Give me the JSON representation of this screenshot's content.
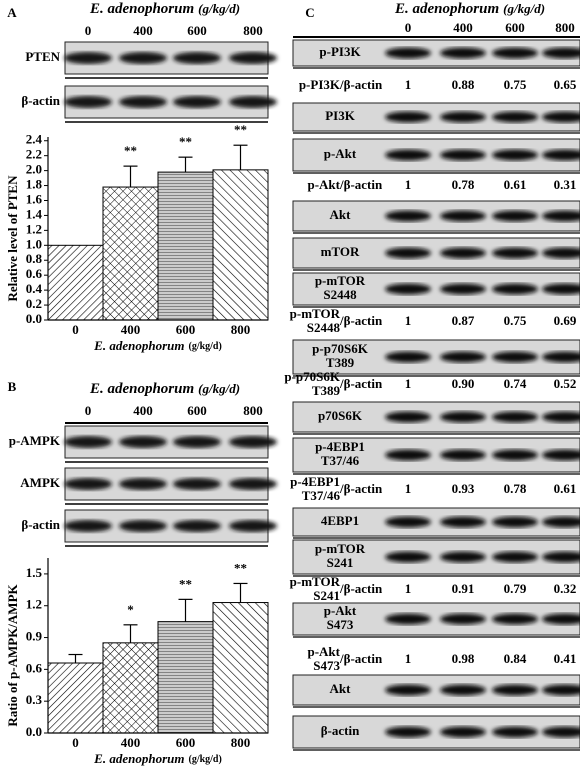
{
  "panel_labels": [
    "A",
    "B",
    "C"
  ],
  "panel_a": {
    "header": {
      "species": "E. adenophorum",
      "unit": "(g/kg/d)"
    },
    "doses": [
      "0",
      "400",
      "600",
      "800"
    ],
    "blots": [
      "PTEN",
      "β-actin"
    ]
  },
  "panel_b": {
    "header": {
      "species": "E. adenophorum",
      "unit": "(g/kg/d)"
    },
    "doses": [
      "0",
      "400",
      "600",
      "800"
    ],
    "blots": [
      "p-AMPK",
      "AMPK",
      "β-actin"
    ]
  },
  "panel_c": {
    "header": {
      "species": "E. adenophorum",
      "unit": "(g/kg/d)"
    },
    "doses": [
      "0",
      "400",
      "600",
      "800"
    ],
    "rows": [
      {
        "blot": [
          "p-PI3K"
        ]
      },
      {
        "ratio": [
          "p-PI3K"
        ],
        "ref": "/β-actin",
        "values": [
          "1",
          "0.88",
          "0.75",
          "0.65"
        ]
      },
      {
        "blot": [
          "PI3K"
        ]
      },
      {
        "blot": [
          "p-Akt"
        ]
      },
      {
        "ratio": [
          "p-Akt"
        ],
        "ref": "/β-actin",
        "values": [
          "1",
          "0.78",
          "0.61",
          "0.31"
        ]
      },
      {
        "blot": [
          "Akt"
        ]
      },
      {
        "blot": [
          "mTOR"
        ]
      },
      {
        "blot": [
          "p-mTOR",
          "S2448"
        ]
      },
      {
        "ratio": [
          "p-mTOR",
          "S2448"
        ],
        "ref": "/β-actin",
        "values": [
          "1",
          "0.87",
          "0.75",
          "0.69"
        ]
      },
      {
        "blot": [
          "p-p70S6K",
          "T389"
        ]
      },
      {
        "ratio": [
          "p-p70S6K",
          "T389"
        ],
        "ref": "/β-actin",
        "values": [
          "1",
          "0.90",
          "0.74",
          "0.52"
        ]
      },
      {
        "blot": [
          "p70S6K"
        ]
      },
      {
        "blot": [
          "p-4EBP1",
          "T37/46"
        ]
      },
      {
        "ratio": [
          "p-4EBP1",
          "T37/46"
        ],
        "ref": "/β-actin",
        "values": [
          "1",
          "0.93",
          "0.78",
          "0.61"
        ]
      },
      {
        "blot": [
          "4EBP1"
        ]
      },
      {
        "blot": [
          "p-mTOR",
          "S241"
        ]
      },
      {
        "ratio": [
          "p-mTOR",
          "S241"
        ],
        "ref": "/β-actin",
        "values": [
          "1",
          "0.91",
          "0.79",
          "0.32"
        ]
      },
      {
        "blot": [
          "p-Akt",
          "S473"
        ]
      },
      {
        "ratio": [
          "p-Akt",
          "S473"
        ],
        "ref": "/β-actin",
        "values": [
          "1",
          "0.98",
          "0.84",
          "0.41"
        ]
      },
      {
        "blot": [
          "Akt"
        ]
      },
      {
        "blot": [
          "β-actin"
        ]
      }
    ]
  },
  "chart_data": [
    {
      "type": "bar",
      "y_label": "Relative level of PTEN",
      "x_label": {
        "species": "E. adenophorum",
        "unit": "(g/kg/d)"
      },
      "categories": [
        "0",
        "400",
        "600",
        "800"
      ],
      "values": [
        1.0,
        1.78,
        1.98,
        2.01
      ],
      "errors": [
        0,
        0.28,
        0.2,
        0.33
      ],
      "annotations": [
        null,
        "**",
        "**",
        "**"
      ],
      "ylim": [
        0,
        2.45
      ],
      "yticks": [
        {
          "value": 0,
          "label": "0.0"
        },
        0.2,
        0.4,
        0.6,
        0.8,
        {
          "value": 1,
          "label": "1.0"
        },
        1.2,
        1.4,
        1.6,
        1.8,
        {
          "value": 2,
          "label": "2.0"
        },
        2.2,
        2.4
      ]
    },
    {
      "type": "bar",
      "y_label": "Ratio of p-AMPK/AMPK",
      "x_label": {
        "species": "E. adenophorum",
        "unit": "(g/kg/d)"
      },
      "categories": [
        "0",
        "400",
        "600",
        "800"
      ],
      "values": [
        0.66,
        0.85,
        1.05,
        1.23
      ],
      "errors": [
        0.08,
        0.17,
        0.21,
        0.18
      ],
      "annotations": [
        null,
        "*",
        "**",
        "**"
      ],
      "ylim": [
        0,
        1.65
      ],
      "yticks": [
        {
          "value": 0,
          "label": "0.0"
        },
        0.3,
        0.6,
        0.9,
        1.2,
        1.5
      ]
    }
  ]
}
